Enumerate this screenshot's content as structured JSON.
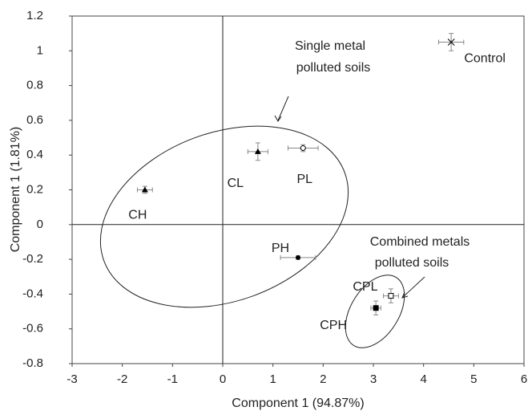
{
  "chart_data": {
    "type": "scatter",
    "x_label": "Component 1 (94.87%)",
    "y_label": "Component 1 (1.81%)",
    "xlim": [
      -3,
      6
    ],
    "xticks": [
      -3,
      -2,
      -1,
      0,
      1,
      2,
      3,
      4,
      5,
      6
    ],
    "ylim": [
      -0.8,
      1.2
    ],
    "yticks": [
      -0.8,
      -0.6,
      -0.4,
      -0.2,
      0,
      0.2,
      0.4,
      0.6,
      0.8,
      1,
      1.2
    ],
    "color": "#000000",
    "points": [
      {
        "name": "Control",
        "x": 4.55,
        "y": 1.05,
        "xerr": 0.25,
        "yerr": 0.05,
        "marker": "x"
      },
      {
        "name": "CL",
        "x": 0.7,
        "y": 0.42,
        "xerr": 0.2,
        "yerr": 0.05,
        "marker": "triangle"
      },
      {
        "name": "PL",
        "x": 1.6,
        "y": 0.44,
        "xerr": 0.3,
        "yerr": 0.02,
        "marker": "open-circle"
      },
      {
        "name": "CH",
        "x": -1.55,
        "y": 0.2,
        "xerr": 0.15,
        "yerr": 0.02,
        "marker": "triangle"
      },
      {
        "name": "PH",
        "x": 1.5,
        "y": -0.19,
        "xerr": 0.35,
        "yerr": 0.01,
        "marker": "circle"
      },
      {
        "name": "CPL",
        "x": 3.35,
        "y": -0.41,
        "xerr": 0.15,
        "yerr": 0.04,
        "marker": "open-square"
      },
      {
        "name": "CPH",
        "x": 3.05,
        "y": -0.48,
        "xerr": 0.1,
        "yerr": 0.04,
        "marker": "square"
      }
    ],
    "annotations": [
      "Single metal",
      "polluted soils",
      "Combined metals",
      "polluted soils"
    ]
  }
}
